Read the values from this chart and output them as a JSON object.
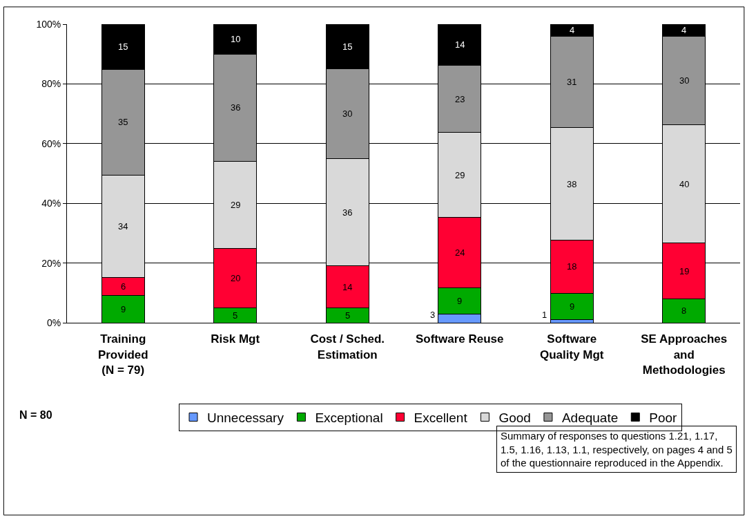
{
  "chart_data": {
    "type": "bar",
    "stacked": true,
    "categories": [
      "Training\nProvided\n(N = 79)",
      "Risk Mgt",
      "Cost / Sched.\nEstimation",
      "Software Reuse",
      "Software\nQuality Mgt",
      "SE Approaches\nand\nMethodologies"
    ],
    "series": [
      {
        "name": "Unnecessary",
        "color": "#6699ff",
        "values": [
          null,
          null,
          null,
          2.9,
          1.0,
          null
        ],
        "value_labels": [
          null,
          null,
          null,
          "3",
          "1",
          null
        ]
      },
      {
        "name": "Exceptional",
        "color": "#00aa00",
        "values": [
          9.1,
          5,
          5,
          8.8,
          8.9,
          7.9
        ],
        "value_labels": [
          "9",
          "5",
          "5",
          "9",
          "9",
          "8"
        ]
      },
      {
        "name": "Excellent",
        "color": "#ff0033",
        "values": [
          6.1,
          20,
          14,
          23.5,
          17.8,
          18.8
        ],
        "value_labels": [
          "6",
          "20",
          "14",
          "24",
          "18",
          "19"
        ]
      },
      {
        "name": "Good",
        "color": "#d9d9d9",
        "values": [
          34.3,
          29,
          36,
          28.5,
          37.6,
          39.6
        ],
        "value_labels": [
          "34",
          "29",
          "36",
          "29",
          "38",
          "40"
        ]
      },
      {
        "name": "Adequate",
        "color": "#969696",
        "values": [
          35.4,
          36,
          30,
          22.5,
          30.7,
          29.7
        ],
        "value_labels": [
          "35",
          "36",
          "30",
          "23",
          "31",
          "30"
        ]
      },
      {
        "name": "Poor",
        "color": "#000000",
        "values": [
          15.1,
          10,
          15,
          13.8,
          4.0,
          4.0
        ],
        "value_labels": [
          "15",
          "10",
          "15",
          "14",
          "4",
          "4"
        ]
      }
    ],
    "ylim": [
      0,
      100
    ],
    "yticks": [
      {
        "value": 0,
        "label": "0%"
      },
      {
        "value": 20,
        "label": "20%"
      },
      {
        "value": 40,
        "label": "40%"
      },
      {
        "value": 60,
        "label": "60%"
      },
      {
        "value": 80,
        "label": "80%"
      },
      {
        "value": 100,
        "label": "100%"
      }
    ],
    "grid": "y",
    "legend": "bottom",
    "annotations": [
      "N = 80",
      "Summary of responses to questions 1.21, 1.17,\n1.5, 1.16, 1.13, 1.1, respectively, on pages 4 and 5\nof the questionnaire reproduced in the Appendix."
    ]
  }
}
